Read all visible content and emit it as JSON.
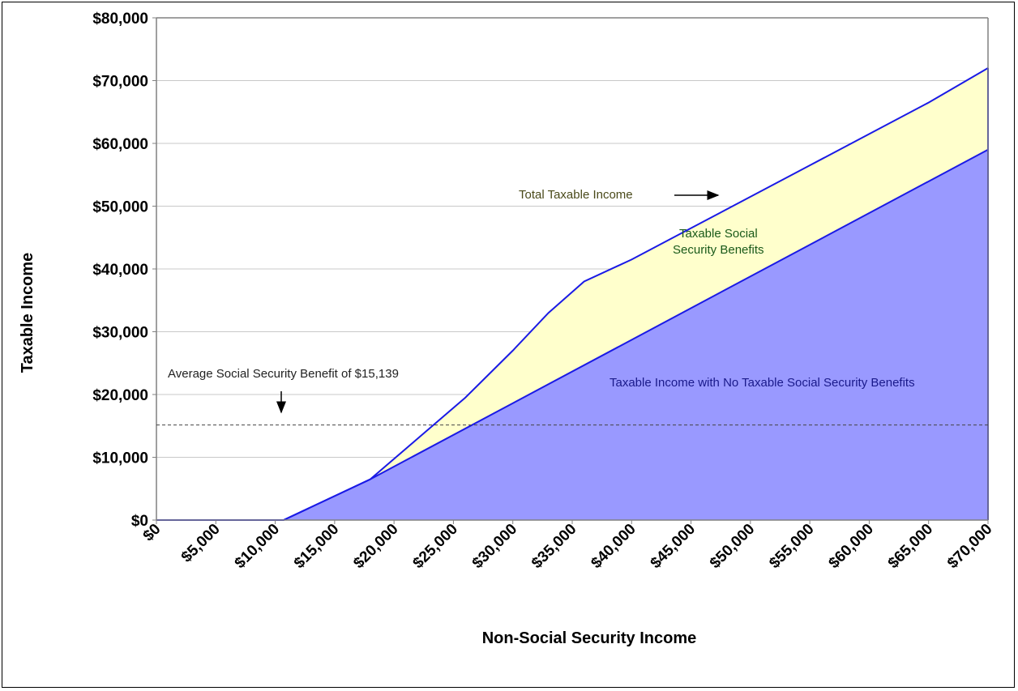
{
  "chart_data": {
    "type": "area",
    "title": "",
    "xlabel": "Non-Social Security Income",
    "ylabel": "Taxable Income",
    "xlim": [
      0,
      70000
    ],
    "ylim": [
      0,
      80000
    ],
    "grid": true,
    "x_ticks": [
      "$0",
      "$5,000",
      "$10,000",
      "$15,000",
      "$20,000",
      "$25,000",
      "$30,000",
      "$35,000",
      "$40,000",
      "$45,000",
      "$50,000",
      "$55,000",
      "$60,000",
      "$65,000",
      "$70,000"
    ],
    "y_ticks": [
      "$0",
      "$10,000",
      "$20,000",
      "$30,000",
      "$40,000",
      "$50,000",
      "$60,000",
      "$70,000",
      "$80,000"
    ],
    "series": [
      {
        "name": "Total Taxable Income",
        "color": "#ffffcc",
        "line_color": "#1a1ae6",
        "points": [
          [
            0,
            0
          ],
          [
            10700,
            0
          ],
          [
            18000,
            6500
          ],
          [
            22000,
            13000
          ],
          [
            26000,
            19500
          ],
          [
            30000,
            27000
          ],
          [
            33000,
            33000
          ],
          [
            36000,
            38000
          ],
          [
            40000,
            41500
          ],
          [
            45000,
            46500
          ],
          [
            50000,
            51500
          ],
          [
            55000,
            56500
          ],
          [
            60000,
            61500
          ],
          [
            65000,
            66500
          ],
          [
            70000,
            72000
          ]
        ]
      },
      {
        "name": "Taxable Income with No Taxable Social Security Benefits",
        "color": "#9999ff",
        "line_color": "#1a1ae6",
        "points": [
          [
            0,
            0
          ],
          [
            10700,
            0
          ],
          [
            18000,
            6500
          ],
          [
            70000,
            59000
          ]
        ]
      }
    ],
    "reference_line": {
      "y": 15139,
      "style": "dashed"
    },
    "annotations": {
      "total_taxable_income": "Total Taxable Income",
      "taxable_ss_benefits_line1": "Taxable Social",
      "taxable_ss_benefits_line2": "Security Benefits",
      "no_taxable_ss": "Taxable Income with No Taxable Social Security Benefits",
      "average_benefit": "Average Social Security Benefit of $15,139"
    }
  }
}
